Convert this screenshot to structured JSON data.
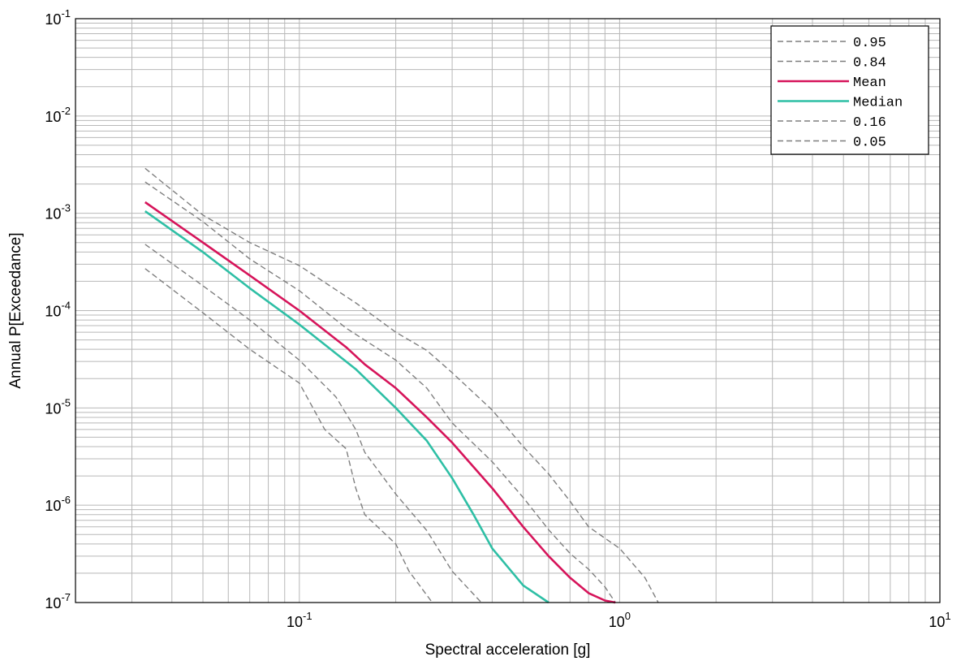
{
  "chart_data": {
    "type": "line",
    "xlabel": "Spectral acceleration [g]",
    "ylabel": "Annual P[Exceedance]",
    "x_scale": "log",
    "y_scale": "log",
    "xlim": [
      0.02,
      10
    ],
    "ylim": [
      1e-07,
      0.1
    ],
    "grid": true,
    "legend_position": "top-right",
    "x_ticks": [
      {
        "value": 0.1,
        "base": "10",
        "exp": "-1"
      },
      {
        "value": 1,
        "base": "10",
        "exp": "0"
      },
      {
        "value": 10,
        "base": "10",
        "exp": "1"
      }
    ],
    "y_ticks": [
      {
        "value": 1e-07,
        "base": "10",
        "exp": "-7"
      },
      {
        "value": 1e-06,
        "base": "10",
        "exp": "-6"
      },
      {
        "value": 1e-05,
        "base": "10",
        "exp": "-5"
      },
      {
        "value": 0.0001,
        "base": "10",
        "exp": "-4"
      },
      {
        "value": 0.001,
        "base": "10",
        "exp": "-3"
      },
      {
        "value": 0.01,
        "base": "10",
        "exp": "-2"
      },
      {
        "value": 0.1,
        "base": "10",
        "exp": "-1"
      }
    ],
    "series": [
      {
        "name": "0.95",
        "color": "#7f7f7f",
        "dash": true,
        "x": [
          0.033,
          0.05,
          0.07,
          0.1,
          0.15,
          0.2,
          0.25,
          0.3,
          0.4,
          0.5,
          0.6,
          0.7,
          0.8,
          1.0,
          1.2,
          1.32
        ],
        "y": [
          0.0029,
          0.00096,
          0.0005,
          0.00029,
          0.00012,
          6e-05,
          3.9e-05,
          2.3e-05,
          9.5e-06,
          4e-06,
          2.1e-06,
          1.1e-06,
          6e-07,
          3.6e-07,
          1.8e-07,
          1e-07
        ]
      },
      {
        "name": "0.84",
        "color": "#7f7f7f",
        "dash": true,
        "x": [
          0.033,
          0.05,
          0.07,
          0.1,
          0.14,
          0.2,
          0.25,
          0.3,
          0.4,
          0.5,
          0.6,
          0.7,
          0.8,
          0.9,
          0.97
        ],
        "y": [
          0.0021,
          0.00082,
          0.00034,
          0.00016,
          6.6e-05,
          3.1e-05,
          1.6e-05,
          7e-06,
          2.8e-06,
          1.2e-06,
          5.6e-07,
          3.2e-07,
          2.2e-07,
          1.45e-07,
          1e-07
        ]
      },
      {
        "name": "Mean",
        "color": "#d6145a",
        "dash": false,
        "x": [
          0.033,
          0.05,
          0.07,
          0.1,
          0.14,
          0.16,
          0.2,
          0.25,
          0.3,
          0.4,
          0.5,
          0.6,
          0.7,
          0.8,
          0.9,
          0.97
        ],
        "y": [
          0.0013,
          0.0005,
          0.00023,
          0.0001,
          4.2e-05,
          2.8e-05,
          1.6e-05,
          8e-06,
          4.4e-06,
          1.5e-06,
          6e-07,
          3e-07,
          1.8e-07,
          1.25e-07,
          1.05e-07,
          1e-07
        ]
      },
      {
        "name": "Median",
        "color": "#2ebfa5",
        "dash": false,
        "x": [
          0.033,
          0.05,
          0.07,
          0.1,
          0.15,
          0.2,
          0.25,
          0.3,
          0.35,
          0.4,
          0.5,
          0.6
        ],
        "y": [
          0.00105,
          0.0004,
          0.00017,
          7.2e-05,
          2.5e-05,
          1e-05,
          4.6e-06,
          1.9e-06,
          8e-07,
          3.6e-07,
          1.5e-07,
          1e-07
        ]
      },
      {
        "name": "0.16",
        "color": "#7f7f7f",
        "dash": true,
        "x": [
          0.033,
          0.05,
          0.07,
          0.1,
          0.13,
          0.15,
          0.16,
          0.2,
          0.25,
          0.3,
          0.37
        ],
        "y": [
          0.00048,
          0.00018,
          8e-05,
          3.1e-05,
          1.3e-05,
          6e-06,
          3.5e-06,
          1.3e-06,
          5.5e-07,
          2.1e-07,
          1e-07
        ]
      },
      {
        "name": "0.05",
        "color": "#7f7f7f",
        "dash": true,
        "x": [
          0.033,
          0.05,
          0.07,
          0.1,
          0.12,
          0.14,
          0.15,
          0.16,
          0.2,
          0.22,
          0.26
        ],
        "y": [
          0.00027,
          9.5e-05,
          4e-05,
          1.8e-05,
          6e-06,
          3.8e-06,
          1.5e-06,
          8e-07,
          4e-07,
          2.1e-07,
          1e-07
        ]
      }
    ],
    "legend_order": [
      "0.95",
      "0.84",
      "Mean",
      "Median",
      "0.16",
      "0.05"
    ]
  }
}
